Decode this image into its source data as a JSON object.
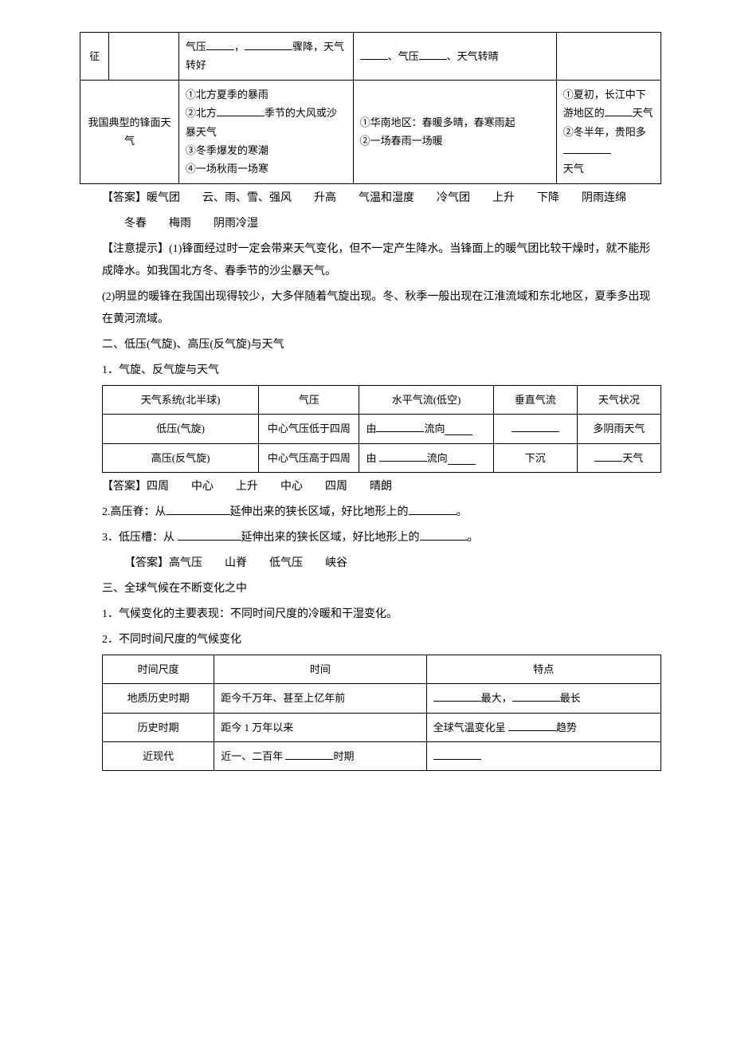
{
  "table1": {
    "r1": {
      "c1": "征",
      "c3a": "气压",
      "c3b": "，",
      "c3c": "骤降，天气转好",
      "c4a": "、气压",
      "c4b": "、天气转晴"
    },
    "r2": {
      "c12": "我国典型的锋面天气",
      "c3_l1": "①北方夏季的暴雨",
      "c3_l2a": "②北方",
      "c3_l2b": "季节的大风或沙暴天气",
      "c3_l3": "③冬季爆发的寒潮",
      "c3_l4": "④一场秋雨一场寒",
      "c4_l1": "①华南地区：春暖多晴，春寒雨起",
      "c4_l2": "②一场春雨一场暖",
      "c5_l1a": "①夏初，长江中下游地区的",
      "c5_l1b": "天气",
      "c5_l2a": "②冬半年，贵阳多",
      "c5_l2b": "天气"
    }
  },
  "ans1_label": "【答案】",
  "ans1_text": "暖气团　　云、雨、雪、强风　　升高　　气温和湿度　　冷气团　　上升　　下降　　阴雨连绵",
  "ans1_text2": "冬春　　梅雨　　阴雨冷湿",
  "note_label": "【注意提示】",
  "note_p1": "(1)锋面经过时一定会带来天气变化，但不一定产生降水。当锋面上的暖气团比较干燥时，就不能形成降水。如我国北方冬、春季节的沙尘暴天气。",
  "note_p2": "(2)明显的暖锋在我国出现得较少，大多伴随着气旋出现。冬、秋季一般出现在江淮流域和东北地区，夏季多出现在黄河流域。",
  "sec2_h": "二、低压(气旋)、高压(反气旋)与天气",
  "sec2_1": "1．气旋、反气旋与天气",
  "table2": {
    "h1": "天气系统(北半球)",
    "h2": "气压",
    "h3": "水平气流(低空)",
    "h4": "垂直气流",
    "h5": "天气状况",
    "r1c1": "低压(气旋)",
    "r1c2": "中心气压低于四周",
    "r1c3a": "由",
    "r1c3b": "流向",
    "r1c5": "多阴雨天气",
    "r2c1": "高压(反气旋)",
    "r2c2": "中心气压高于四周",
    "r2c3a": "由",
    "r2c3b": "流向",
    "r2c4": "下沉",
    "r2c5b": "天气"
  },
  "ans2_label": "【答案】",
  "ans2_text": "四周　　中心　　上升　　中心　　四周　　晴朗",
  "sec2_2a": "2.高压脊：从",
  "sec2_2b": "延伸出来的狭长区域，好比地形上的",
  "sec2_2c": "。",
  "sec2_3a": "3．低压槽：从",
  "sec2_3b": "延伸出来的狭长区域，好比地形上的",
  "sec2_3c": "。",
  "ans3_label": "【答案】",
  "ans3_text": "高气压　　山脊　　低气压　　峡谷",
  "sec3_h": "三、全球气候在不断变化之中",
  "sec3_1": "1．气候变化的主要表现：不同时间尺度的冷暖和干湿变化。",
  "sec3_2": "2．不同时间尺度的气候变化",
  "table3": {
    "h1": "时间尺度",
    "h2": "时间",
    "h3": "特点",
    "r1c1": "地质历史时期",
    "r1c2": "距今千万年、甚至上亿年前",
    "r1c3b": "最大，",
    "r1c3d": "最长",
    "r2c1": "历史时期",
    "r2c2": "距今 1 万年以来",
    "r2c3a": "全球气温变化呈",
    "r2c3b": "趋势",
    "r3c1": "近现代",
    "r3c2a": "近一、二百年",
    "r3c2b": "时期"
  }
}
